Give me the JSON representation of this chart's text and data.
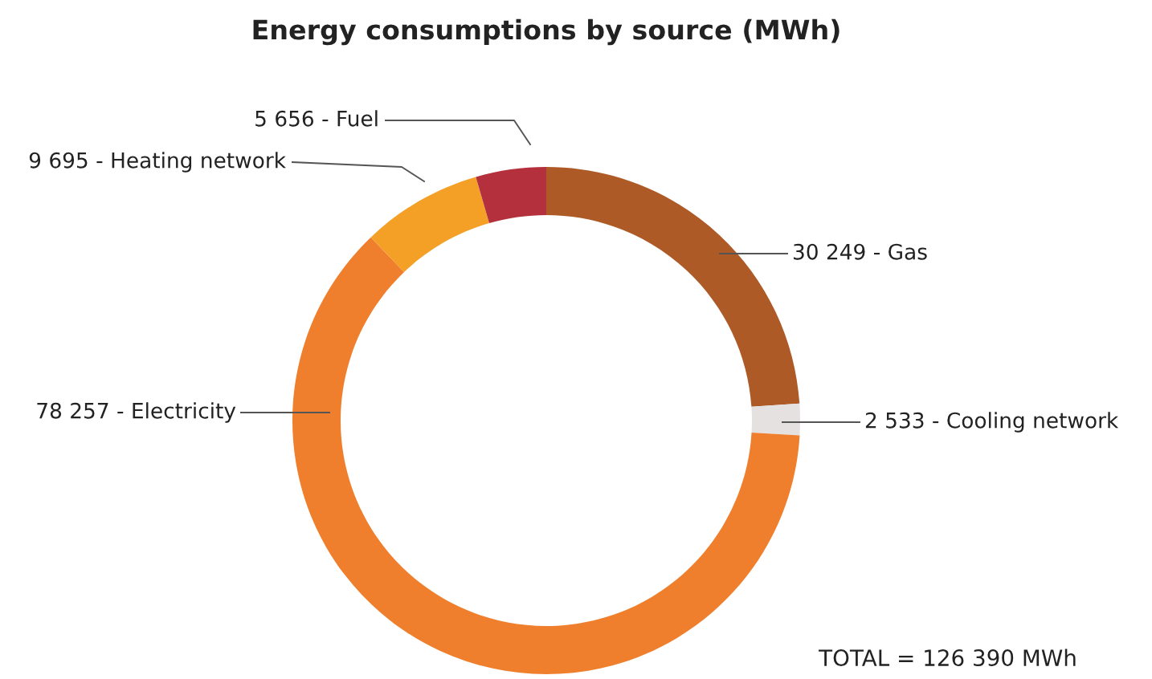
{
  "chart_data": {
    "type": "donut",
    "title": "Energy consumptions by source (MWh)",
    "categories": [
      "30 249 - Gas",
      "2 533 - Cooling network",
      "78 257 - Electricity",
      "9 695 - Heating network",
      "5 656 - Fuel"
    ],
    "values": [
      30249,
      2533,
      78257,
      9695,
      5656
    ],
    "colors": [
      "#ad5a26",
      "#e5e1e1",
      "#ef7f2d",
      "#f4a026",
      "#b3303c"
    ],
    "annotations": [
      "TOTAL = 126 390 MWh"
    ]
  }
}
